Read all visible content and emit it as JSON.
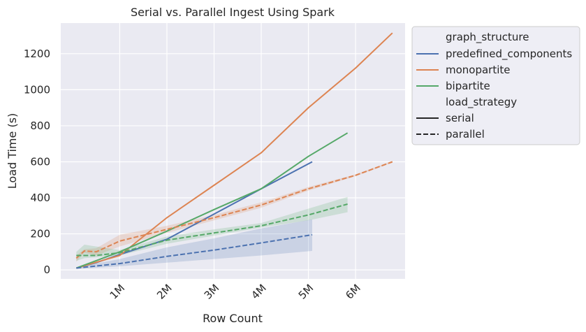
{
  "chart_data": {
    "type": "line",
    "title": "Serial vs. Parallel Ingest Using Spark",
    "xlabel": "Row Count",
    "ylabel": "Load Time (s)",
    "xlim": [
      -250000,
      7050000
    ],
    "ylim": [
      -50,
      1370
    ],
    "x_ticks": [
      {
        "value": 1000000,
        "label": "1M"
      },
      {
        "value": 2000000,
        "label": "2M"
      },
      {
        "value": 3000000,
        "label": "3M"
      },
      {
        "value": 4000000,
        "label": "4M"
      },
      {
        "value": 5000000,
        "label": "5M"
      },
      {
        "value": 6000000,
        "label": "6M"
      }
    ],
    "y_ticks": [
      0,
      200,
      400,
      600,
      800,
      1000,
      1200
    ],
    "grid": true,
    "legend_placement": "outside-upper-right",
    "colors": {
      "background": "#eaeaf2",
      "grid": "#ffffff",
      "predefined_components": "#4c72b0",
      "monopartite": "#dd8452",
      "bipartite": "#55a868"
    },
    "legend": {
      "hue_title": "graph_structure",
      "hue_entries": [
        {
          "label": "predefined_components",
          "color": "#4c72b0"
        },
        {
          "label": "monopartite",
          "color": "#dd8452"
        },
        {
          "label": "bipartite",
          "color": "#55a868"
        }
      ],
      "style_title": "load_strategy",
      "style_entries": [
        {
          "label": "serial",
          "dash": "solid"
        },
        {
          "label": "parallel",
          "dash": "dashed"
        }
      ]
    },
    "series": [
      {
        "graph_structure": "predefined_components",
        "load_strategy": "serial",
        "color": "#4c72b0",
        "dash": "solid",
        "x": [
          80000,
          500000,
          1000000,
          2000000,
          3000000,
          4000000,
          5080000
        ],
        "y": [
          10,
          40,
          85,
          170,
          310,
          450,
          600
        ]
      },
      {
        "graph_structure": "monopartite",
        "load_strategy": "serial",
        "color": "#dd8452",
        "dash": "solid",
        "x": [
          80000,
          1000000,
          2000000,
          3000000,
          4000000,
          5000000,
          6000000,
          6780000
        ],
        "y": [
          10,
          80,
          290,
          470,
          650,
          900,
          1120,
          1315
        ]
      },
      {
        "graph_structure": "bipartite",
        "load_strategy": "serial",
        "color": "#55a868",
        "dash": "solid",
        "x": [
          80000,
          1000000,
          2000000,
          3000000,
          4000000,
          5000000,
          5830000
        ],
        "y": [
          10,
          100,
          215,
          335,
          450,
          630,
          760
        ]
      },
      {
        "graph_structure": "predefined_components",
        "load_strategy": "parallel",
        "color": "#4c72b0",
        "dash": "dashed",
        "x": [
          80000,
          1000000,
          2000000,
          3000000,
          4000000,
          5080000
        ],
        "y": [
          10,
          35,
          75,
          110,
          150,
          195
        ],
        "ci_low": [
          5,
          20,
          40,
          60,
          80,
          105
        ],
        "ci_high": [
          15,
          60,
          125,
          175,
          230,
          280
        ]
      },
      {
        "graph_structure": "monopartite",
        "load_strategy": "parallel",
        "color": "#dd8452",
        "dash": "dashed",
        "x": [
          80000,
          250000,
          500000,
          1000000,
          2000000,
          3000000,
          4000000,
          5000000,
          6000000,
          6780000
        ],
        "y": [
          65,
          105,
          100,
          160,
          225,
          290,
          360,
          450,
          525,
          600
        ],
        "ci_low": [
          45,
          95,
          80,
          130,
          205,
          275,
          345,
          440,
          520,
          595
        ],
        "ci_high": [
          80,
          115,
          120,
          195,
          245,
          305,
          375,
          460,
          530,
          605
        ]
      },
      {
        "graph_structure": "bipartite",
        "load_strategy": "parallel",
        "color": "#55a868",
        "dash": "dashed",
        "x": [
          80000,
          250000,
          500000,
          1000000,
          2000000,
          3000000,
          4000000,
          5000000,
          5830000
        ],
        "y": [
          80,
          80,
          80,
          95,
          165,
          205,
          245,
          305,
          365
        ],
        "ci_low": [
          50,
          65,
          70,
          80,
          145,
          190,
          235,
          275,
          320
        ],
        "ci_high": [
          100,
          140,
          130,
          110,
          185,
          225,
          260,
          340,
          405
        ]
      }
    ]
  }
}
